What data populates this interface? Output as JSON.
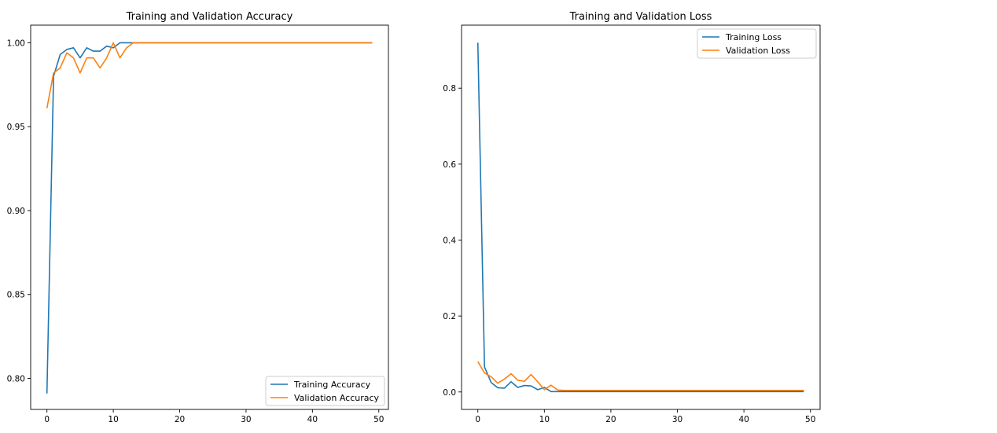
{
  "colors": {
    "training": "#1f77b4",
    "validation": "#ff7f0e"
  },
  "chart_data": [
    {
      "type": "line",
      "title": "Training and Validation Accuracy",
      "xlabel": "",
      "ylabel": "",
      "xlim": [
        -2.45,
        51.45
      ],
      "ylim": [
        0.7815,
        1.0105
      ],
      "xticks": [
        0,
        10,
        20,
        30,
        40,
        50
      ],
      "yticks": [
        0.8,
        0.85,
        0.9,
        0.95,
        1.0
      ],
      "ytick_labels": [
        "0.80",
        "0.85",
        "0.90",
        "0.95",
        "1.00"
      ],
      "xtick_labels": [
        "0",
        "10",
        "20",
        "30",
        "40",
        "50"
      ],
      "legend_position": "lower right",
      "grid": false,
      "x": [
        0,
        1,
        2,
        3,
        4,
        5,
        6,
        7,
        8,
        9,
        10,
        11,
        12,
        13,
        14,
        15,
        16,
        17,
        18,
        19,
        20,
        21,
        22,
        23,
        24,
        25,
        26,
        27,
        28,
        29,
        30,
        31,
        32,
        33,
        34,
        35,
        36,
        37,
        38,
        39,
        40,
        41,
        42,
        43,
        44,
        45,
        46,
        47,
        48,
        49
      ],
      "series": [
        {
          "name": "Training Accuracy",
          "color_key": "training",
          "values": [
            0.791,
            0.98,
            0.993,
            0.996,
            0.997,
            0.991,
            0.997,
            0.995,
            0.995,
            0.998,
            0.997,
            1.0,
            1.0,
            1.0,
            1.0,
            1.0,
            1.0,
            1.0,
            1.0,
            1.0,
            1.0,
            1.0,
            1.0,
            1.0,
            1.0,
            1.0,
            1.0,
            1.0,
            1.0,
            1.0,
            1.0,
            1.0,
            1.0,
            1.0,
            1.0,
            1.0,
            1.0,
            1.0,
            1.0,
            1.0,
            1.0,
            1.0,
            1.0,
            1.0,
            1.0,
            1.0,
            1.0,
            1.0,
            1.0,
            1.0
          ]
        },
        {
          "name": "Validation Accuracy",
          "color_key": "validation",
          "values": [
            0.961,
            0.982,
            0.985,
            0.994,
            0.991,
            0.982,
            0.991,
            0.991,
            0.985,
            0.991,
            1.0,
            0.991,
            0.997,
            1.0,
            1.0,
            1.0,
            1.0,
            1.0,
            1.0,
            1.0,
            1.0,
            1.0,
            1.0,
            1.0,
            1.0,
            1.0,
            1.0,
            1.0,
            1.0,
            1.0,
            1.0,
            1.0,
            1.0,
            1.0,
            1.0,
            1.0,
            1.0,
            1.0,
            1.0,
            1.0,
            1.0,
            1.0,
            1.0,
            1.0,
            1.0,
            1.0,
            1.0,
            1.0,
            1.0,
            1.0
          ]
        }
      ]
    },
    {
      "type": "line",
      "title": "Training and Validation Loss",
      "xlabel": "",
      "ylabel": "",
      "xlim": [
        -2.45,
        51.45
      ],
      "ylim": [
        -0.046,
        0.966
      ],
      "xticks": [
        0,
        10,
        20,
        30,
        40,
        50
      ],
      "yticks": [
        0.0,
        0.2,
        0.4,
        0.6,
        0.8
      ],
      "ytick_labels": [
        "0.0",
        "0.2",
        "0.4",
        "0.6",
        "0.8"
      ],
      "xtick_labels": [
        "0",
        "10",
        "20",
        "30",
        "40",
        "50"
      ],
      "legend_position": "upper right",
      "grid": false,
      "x": [
        0,
        1,
        2,
        3,
        4,
        5,
        6,
        7,
        8,
        9,
        10,
        11,
        12,
        13,
        14,
        15,
        16,
        17,
        18,
        19,
        20,
        21,
        22,
        23,
        24,
        25,
        26,
        27,
        28,
        29,
        30,
        31,
        32,
        33,
        34,
        35,
        36,
        37,
        38,
        39,
        40,
        41,
        42,
        43,
        44,
        45,
        46,
        47,
        48,
        49
      ],
      "series": [
        {
          "name": "Training Loss",
          "color_key": "training",
          "values": [
            0.92,
            0.066,
            0.025,
            0.011,
            0.01,
            0.027,
            0.012,
            0.017,
            0.016,
            0.006,
            0.012,
            0.001,
            0.001,
            0.001,
            0.001,
            0.001,
            0.001,
            0.001,
            0.001,
            0.001,
            0.001,
            0.001,
            0.001,
            0.001,
            0.001,
            0.001,
            0.001,
            0.001,
            0.001,
            0.001,
            0.001,
            0.001,
            0.001,
            0.001,
            0.001,
            0.001,
            0.001,
            0.001,
            0.001,
            0.001,
            0.001,
            0.001,
            0.001,
            0.001,
            0.001,
            0.001,
            0.001,
            0.001,
            0.001,
            0.001
          ]
        },
        {
          "name": "Validation Loss",
          "color_key": "validation",
          "values": [
            0.08,
            0.05,
            0.04,
            0.023,
            0.034,
            0.048,
            0.031,
            0.028,
            0.046,
            0.027,
            0.006,
            0.018,
            0.005,
            0.004,
            0.004,
            0.004,
            0.004,
            0.004,
            0.004,
            0.004,
            0.004,
            0.004,
            0.004,
            0.004,
            0.004,
            0.004,
            0.004,
            0.004,
            0.004,
            0.004,
            0.004,
            0.004,
            0.004,
            0.004,
            0.004,
            0.004,
            0.004,
            0.004,
            0.004,
            0.004,
            0.004,
            0.004,
            0.004,
            0.004,
            0.004,
            0.004,
            0.004,
            0.004,
            0.004,
            0.004
          ]
        }
      ]
    }
  ]
}
